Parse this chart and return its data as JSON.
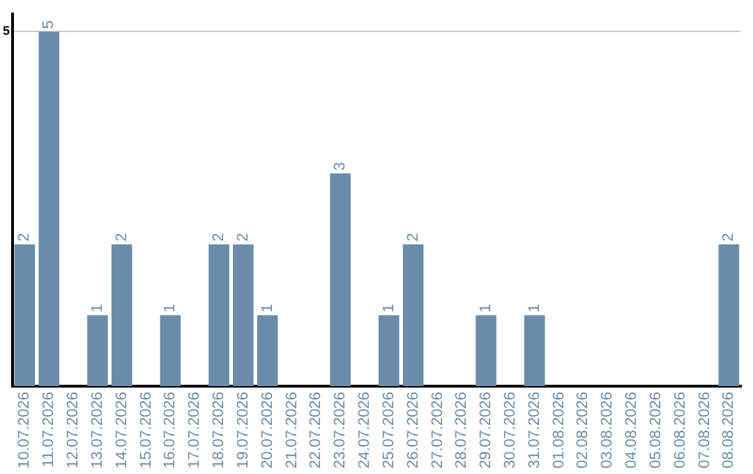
{
  "chart_data": {
    "type": "bar",
    "categories": [
      "10.07.2026",
      "11.07.2026",
      "12.07.2026",
      "13.07.2026",
      "14.07.2026",
      "15.07.2026",
      "16.07.2026",
      "17.07.2026",
      "18.07.2026",
      "19.07.2026",
      "20.07.2026",
      "21.07.2026",
      "22.07.2026",
      "23.07.2026",
      "24.07.2026",
      "25.07.2026",
      "26.07.2026",
      "27.07.2026",
      "28.07.2026",
      "29.07.2026",
      "30.07.2026",
      "31.07.2026",
      "01.08.2026",
      "02.08.2026",
      "03.08.2026",
      "04.08.2026",
      "05.08.2026",
      "06.08.2026",
      "07.08.2026",
      "08.08.2026"
    ],
    "values": [
      2,
      5,
      0,
      1,
      2,
      0,
      1,
      0,
      2,
      2,
      1,
      0,
      0,
      3,
      0,
      1,
      2,
      0,
      0,
      1,
      0,
      1,
      0,
      0,
      0,
      0,
      0,
      0,
      0,
      2
    ],
    "value_labels": [
      "2",
      "5",
      null,
      "1",
      "2",
      null,
      "1",
      null,
      "2",
      "2",
      "1",
      null,
      null,
      "3",
      null,
      "1",
      "2",
      null,
      null,
      "1",
      null,
      "1",
      null,
      null,
      null,
      null,
      null,
      null,
      null,
      "2"
    ],
    "color": "#6a8caa",
    "ylim": [
      0,
      5.25
    ],
    "yticks": [
      5
    ],
    "grid": "y",
    "legend": false
  }
}
